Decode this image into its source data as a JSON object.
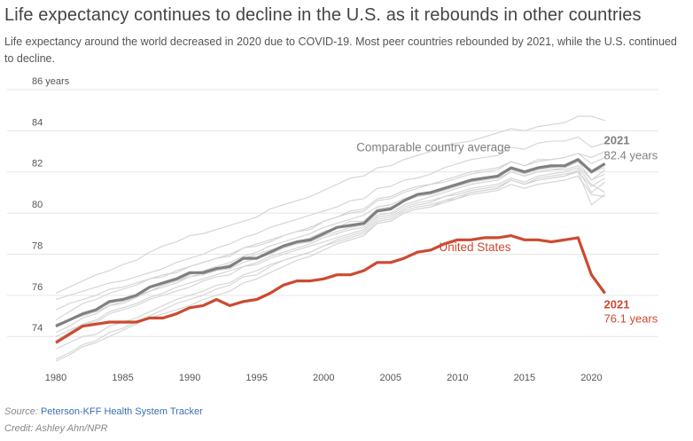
{
  "title": "Life expectancy continues to decline in the U.S. as it rebounds in other countries",
  "subtitle": "Life expectancy around the world decreased in 2020 due to COVID-19. Most peer countries rebounded by 2021, while the U.S. continued to decline.",
  "source_prefix": "Source: ",
  "source_link": "Peterson-KFF Health System Tracker",
  "credit": "Credit: Ashley Ahn/NPR",
  "colors": {
    "us": "#cc4a31",
    "avg": "#808080",
    "peer": "#d3d3d3",
    "grid": "#e6e6e6"
  },
  "chart_data": {
    "type": "line",
    "title": "Life expectancy continues to decline in the U.S. as it rebounds in other countries",
    "xlabel": "",
    "ylabel": "",
    "x": [
      1980,
      1981,
      1982,
      1983,
      1984,
      1985,
      1986,
      1987,
      1988,
      1989,
      1990,
      1991,
      1992,
      1993,
      1994,
      1995,
      1996,
      1997,
      1998,
      1999,
      2000,
      2001,
      2002,
      2003,
      2004,
      2005,
      2006,
      2007,
      2008,
      2009,
      2010,
      2011,
      2012,
      2013,
      2014,
      2015,
      2016,
      2017,
      2018,
      2019,
      2020,
      2021
    ],
    "xlim": [
      1980,
      2025
    ],
    "ylim": [
      72.5,
      86
    ],
    "x_ticks": [
      "1980",
      "1985",
      "1990",
      "1995",
      "2000",
      "2005",
      "2010",
      "2015",
      "2020"
    ],
    "y_ticks": [
      "74",
      "76",
      "78",
      "80",
      "82",
      "84",
      "86 years"
    ],
    "grid": true,
    "series": [
      {
        "name": "United States",
        "role": "highlight",
        "values": [
          73.7,
          74.1,
          74.5,
          74.6,
          74.7,
          74.7,
          74.7,
          74.9,
          74.9,
          75.1,
          75.4,
          75.5,
          75.8,
          75.5,
          75.7,
          75.8,
          76.1,
          76.5,
          76.7,
          76.7,
          76.8,
          77.0,
          77.0,
          77.2,
          77.6,
          77.6,
          77.8,
          78.1,
          78.2,
          78.5,
          78.7,
          78.7,
          78.8,
          78.8,
          78.9,
          78.7,
          78.7,
          78.6,
          78.7,
          78.8,
          77.0,
          76.1
        ]
      },
      {
        "name": "Comparable country average",
        "role": "average",
        "values": [
          74.5,
          74.8,
          75.1,
          75.3,
          75.7,
          75.8,
          76.0,
          76.4,
          76.6,
          76.8,
          77.1,
          77.1,
          77.3,
          77.4,
          77.8,
          77.8,
          78.1,
          78.4,
          78.6,
          78.7,
          79.0,
          79.3,
          79.4,
          79.5,
          80.1,
          80.2,
          80.6,
          80.9,
          81.0,
          81.2,
          81.4,
          81.6,
          81.7,
          81.8,
          82.2,
          82.0,
          82.2,
          82.3,
          82.3,
          82.6,
          82.0,
          82.4
        ]
      },
      {
        "role": "peer",
        "values": [
          76.1,
          76.4,
          76.7,
          77.0,
          77.2,
          77.5,
          77.7,
          78.1,
          78.4,
          78.6,
          78.9,
          79.0,
          79.2,
          79.4,
          79.6,
          79.8,
          80.2,
          80.4,
          80.6,
          80.8,
          81.1,
          81.4,
          81.7,
          81.8,
          82.2,
          82.3,
          82.6,
          82.8,
          83.0,
          83.3,
          83.4,
          83.5,
          83.7,
          83.9,
          84.1,
          84.0,
          84.2,
          84.3,
          84.4,
          84.7,
          84.7,
          84.5
        ]
      },
      {
        "role": "peer",
        "values": [
          75.8,
          76.0,
          76.2,
          76.4,
          76.6,
          76.7,
          76.9,
          77.1,
          77.3,
          77.6,
          77.8,
          78.0,
          78.3,
          78.5,
          78.8,
          79.0,
          79.3,
          79.5,
          79.7,
          79.9,
          80.1,
          80.3,
          80.6,
          80.7,
          81.2,
          81.3,
          81.6,
          81.7,
          81.9,
          82.2,
          82.4,
          82.6,
          82.7,
          82.8,
          83.2,
          83.1,
          83.4,
          83.5,
          83.5,
          83.7,
          83.2,
          83.4
        ]
      },
      {
        "role": "peer",
        "values": [
          74.8,
          75.2,
          75.6,
          75.8,
          76.1,
          76.3,
          76.5,
          76.8,
          76.9,
          77.2,
          77.4,
          77.6,
          77.8,
          77.9,
          78.3,
          78.4,
          78.6,
          78.9,
          79.1,
          79.2,
          79.6,
          79.8,
          80.0,
          80.1,
          80.6,
          80.7,
          81.0,
          81.2,
          81.4,
          81.5,
          81.7,
          81.9,
          82.0,
          82.1,
          82.5,
          82.3,
          82.5,
          82.6,
          82.7,
          82.9,
          82.4,
          82.7
        ]
      },
      {
        "role": "peer",
        "values": [
          74.2,
          74.5,
          74.9,
          75.1,
          75.5,
          75.7,
          75.9,
          76.2,
          76.4,
          76.6,
          76.9,
          77.0,
          77.2,
          77.3,
          77.6,
          77.8,
          78.0,
          78.3,
          78.5,
          78.6,
          78.9,
          79.1,
          79.3,
          79.4,
          79.9,
          80.0,
          80.4,
          80.6,
          80.8,
          81.0,
          81.2,
          81.4,
          81.5,
          81.6,
          82.0,
          81.8,
          82.0,
          82.1,
          82.2,
          82.5,
          81.6,
          82.1
        ]
      },
      {
        "role": "peer",
        "values": [
          73.8,
          74.2,
          74.6,
          74.8,
          75.2,
          75.4,
          75.6,
          75.9,
          76.1,
          76.4,
          76.6,
          76.8,
          77.0,
          77.2,
          77.4,
          77.6,
          77.9,
          78.1,
          78.3,
          78.5,
          78.8,
          79.0,
          79.2,
          79.3,
          79.8,
          79.9,
          80.3,
          80.5,
          80.6,
          80.8,
          81.0,
          81.2,
          81.3,
          81.4,
          81.7,
          81.5,
          81.8,
          81.9,
          82.0,
          82.2,
          81.4,
          81.0
        ]
      },
      {
        "role": "peer",
        "values": [
          74.5,
          74.8,
          75.0,
          75.2,
          75.5,
          75.6,
          75.9,
          76.2,
          76.5,
          76.7,
          76.9,
          77.1,
          77.3,
          77.5,
          77.8,
          78.0,
          78.2,
          78.4,
          78.6,
          78.8,
          79.1,
          79.3,
          79.6,
          79.6,
          80.2,
          80.3,
          80.6,
          80.8,
          80.9,
          81.1,
          81.3,
          81.5,
          81.6,
          81.7,
          82.0,
          81.8,
          82.0,
          82.1,
          82.1,
          82.3,
          81.6,
          81.9
        ]
      },
      {
        "role": "peer",
        "values": [
          72.9,
          73.2,
          73.6,
          73.8,
          74.2,
          74.4,
          74.7,
          75.0,
          75.3,
          75.6,
          75.8,
          76.0,
          76.3,
          76.5,
          76.9,
          77.0,
          77.4,
          77.7,
          77.9,
          78.1,
          78.4,
          78.7,
          78.9,
          79.1,
          79.6,
          79.7,
          80.1,
          80.3,
          80.4,
          80.6,
          80.8,
          81.0,
          81.1,
          81.2,
          81.6,
          81.4,
          81.6,
          81.7,
          81.8,
          82.1,
          81.0,
          81.5
        ]
      },
      {
        "role": "peer",
        "values": [
          73.4,
          73.7,
          74.0,
          74.1,
          74.5,
          74.7,
          74.9,
          75.2,
          75.5,
          75.8,
          76.0,
          76.2,
          76.5,
          76.6,
          77.0,
          77.2,
          77.5,
          77.7,
          77.9,
          78.1,
          78.4,
          78.6,
          78.8,
          79.0,
          79.5,
          79.6,
          80.0,
          80.2,
          80.3,
          80.5,
          80.7,
          80.9,
          81.0,
          81.1,
          81.4,
          81.2,
          81.4,
          81.5,
          81.6,
          81.8,
          80.9,
          80.8
        ]
      },
      {
        "role": "peer",
        "values": [
          72.8,
          73.1,
          73.5,
          73.7,
          74.0,
          74.3,
          74.6,
          74.9,
          75.1,
          75.3,
          75.5,
          75.8,
          76.0,
          76.2,
          76.6,
          76.8,
          77.1,
          77.4,
          77.7,
          77.9,
          78.2,
          78.5,
          78.7,
          78.9,
          79.5,
          79.6,
          80.0,
          80.2,
          80.3,
          80.6,
          80.7,
          81.0,
          81.1,
          81.2,
          81.6,
          81.4,
          81.7,
          81.8,
          81.9,
          82.0,
          81.3,
          81.7
        ]
      },
      {
        "role": "peer",
        "values": [
          74.0,
          74.3,
          74.6,
          74.7,
          75.1,
          75.3,
          75.5,
          75.8,
          76.0,
          76.2,
          76.4,
          76.7,
          76.9,
          77.0,
          77.4,
          77.5,
          77.8,
          78.0,
          78.2,
          78.4,
          78.6,
          78.8,
          79.0,
          79.2,
          79.7,
          79.8,
          80.2,
          80.4,
          80.5,
          80.8,
          80.9,
          81.1,
          81.2,
          81.3,
          81.6,
          81.4,
          81.6,
          81.7,
          81.8,
          82.0,
          80.4,
          80.9
        ]
      },
      {
        "role": "peer",
        "values": [
          75.3,
          75.6,
          75.8,
          76.0,
          76.3,
          76.4,
          76.6,
          76.8,
          77.0,
          77.1,
          77.4,
          77.6,
          77.8,
          78.0,
          78.3,
          78.5,
          78.7,
          78.9,
          79.1,
          79.3,
          79.6,
          79.8,
          80.1,
          80.2,
          80.7,
          80.8,
          81.1,
          81.3,
          81.4,
          81.6,
          81.8,
          82.0,
          82.1,
          82.2,
          82.5,
          82.3,
          82.6,
          82.6,
          82.7,
          82.9,
          82.7,
          83.0
        ]
      },
      {
        "role": "peer",
        "values": [
          74.6,
          74.8,
          75.1,
          75.3,
          75.6,
          75.8,
          76.0,
          76.2,
          76.5,
          76.7,
          77.0,
          77.2,
          77.4,
          77.6,
          77.9,
          78.1,
          78.4,
          78.6,
          78.8,
          79.0,
          79.3,
          79.5,
          79.7,
          79.9,
          80.3,
          80.4,
          80.7,
          80.9,
          81.0,
          81.2,
          81.4,
          81.6,
          81.7,
          81.8,
          82.1,
          81.9,
          82.1,
          82.2,
          82.3,
          82.5,
          82.0,
          82.2
        ]
      }
    ],
    "annotations": [
      {
        "text": "Comparable country average",
        "series": "Comparable country average"
      },
      {
        "text": "United States",
        "series": "United States"
      },
      {
        "year_label": "2021",
        "value_label": "82.4 years",
        "series": "Comparable country average"
      },
      {
        "year_label": "2021",
        "value_label": "76.1 years",
        "series": "United States"
      }
    ]
  }
}
